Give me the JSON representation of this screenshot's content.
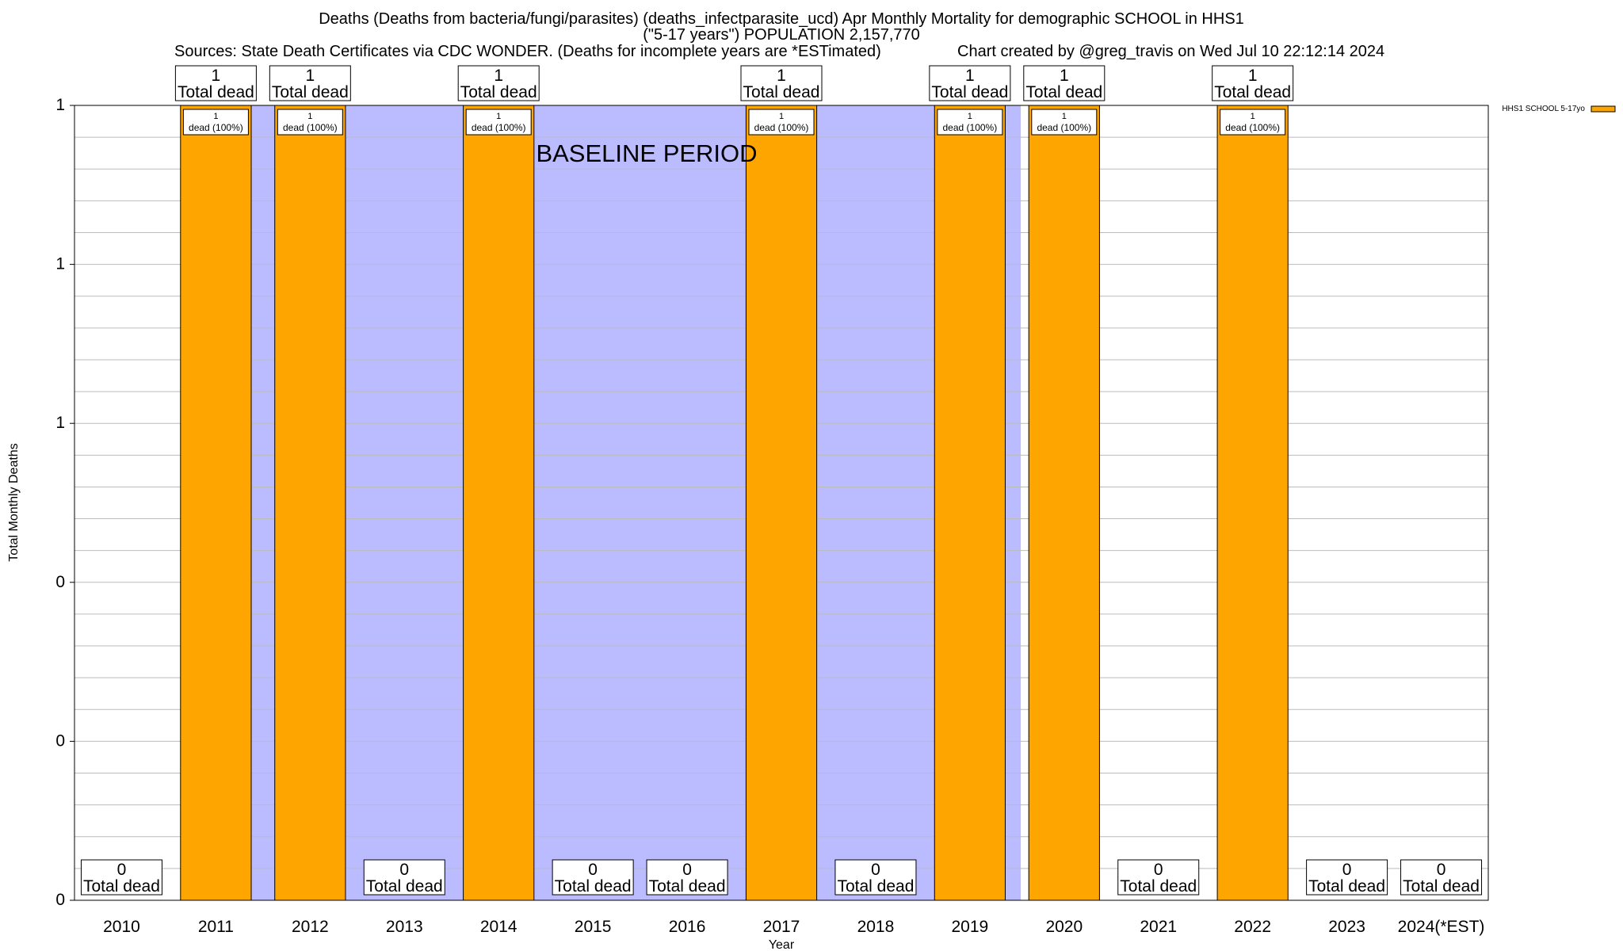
{
  "chart_data": {
    "type": "bar",
    "title_lines": [
      "Deaths (Deaths from bacteria/fungi/parasites) (deaths_infectparasite_ucd) Apr Monthly Mortality for demographic SCHOOL in HHS1",
      "(\"5-17 years\") POPULATION 2,157,770"
    ],
    "sources_text": "Sources: State Death Certificates via CDC WONDER. (Deaths for incomplete years are *ESTimated)",
    "credit_text": "Chart created by @greg_travis on Wed Jul 10 22:12:14 2024",
    "xlabel": "Year",
    "ylabel": "Total Monthly Deaths",
    "categories": [
      "2010",
      "2011",
      "2012",
      "2013",
      "2014",
      "2015",
      "2016",
      "2017",
      "2018",
      "2019",
      "2020",
      "2021",
      "2022",
      "2023",
      "2024(*EST)"
    ],
    "values": [
      0,
      1,
      1,
      0,
      1,
      0,
      0,
      1,
      0,
      1,
      1,
      0,
      1,
      0,
      0
    ],
    "ylim": [
      0,
      1
    ],
    "y_tick_values": [
      0,
      0.2,
      0.4,
      0.6,
      0.8,
      1
    ],
    "y_tick_labels": [
      "0",
      "0",
      "0",
      "1",
      "1",
      "1"
    ],
    "y_minor_grid_count": 25,
    "series": [
      {
        "name": "HHS1 SCHOOL 5-17yo",
        "color": "#FFA500",
        "values": [
          0,
          1,
          1,
          0,
          1,
          0,
          0,
          1,
          0,
          1,
          1,
          0,
          1,
          0,
          0
        ]
      }
    ],
    "total_label_suffix": "Total dead",
    "dead_label_suffix": "dead (100%)",
    "baseline_label": "BASELINE PERIOD",
    "baseline_start_year": "2012",
    "baseline_end_year": "2019",
    "baseline_color": "#BBBBFF",
    "grid": true,
    "legend_position": "top-right"
  }
}
